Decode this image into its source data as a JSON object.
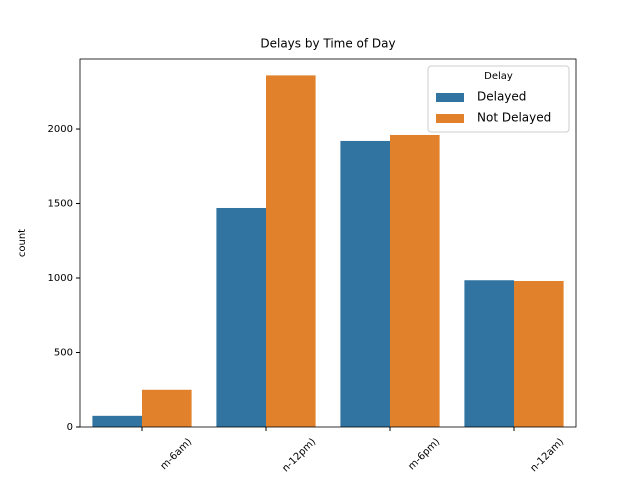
{
  "chart_data": {
    "type": "bar",
    "title": "Delays by Time of Day",
    "ylabel": "count",
    "categories": [
      "m-6am)",
      "n-12pm)",
      "m-6pm)",
      "n-12am)"
    ],
    "series": [
      {
        "name": "Delayed",
        "color": "#3274a1",
        "values": [
          75,
          1470,
          1920,
          985
        ]
      },
      {
        "name": "Not Delayed",
        "color": "#e1812c",
        "values": [
          250,
          2360,
          1960,
          980
        ]
      }
    ],
    "legend_title": "Delay",
    "legend_position": "upper right",
    "ylim": [
      0,
      2470
    ],
    "yticks": [
      0,
      500,
      1000,
      1500,
      2000
    ]
  }
}
